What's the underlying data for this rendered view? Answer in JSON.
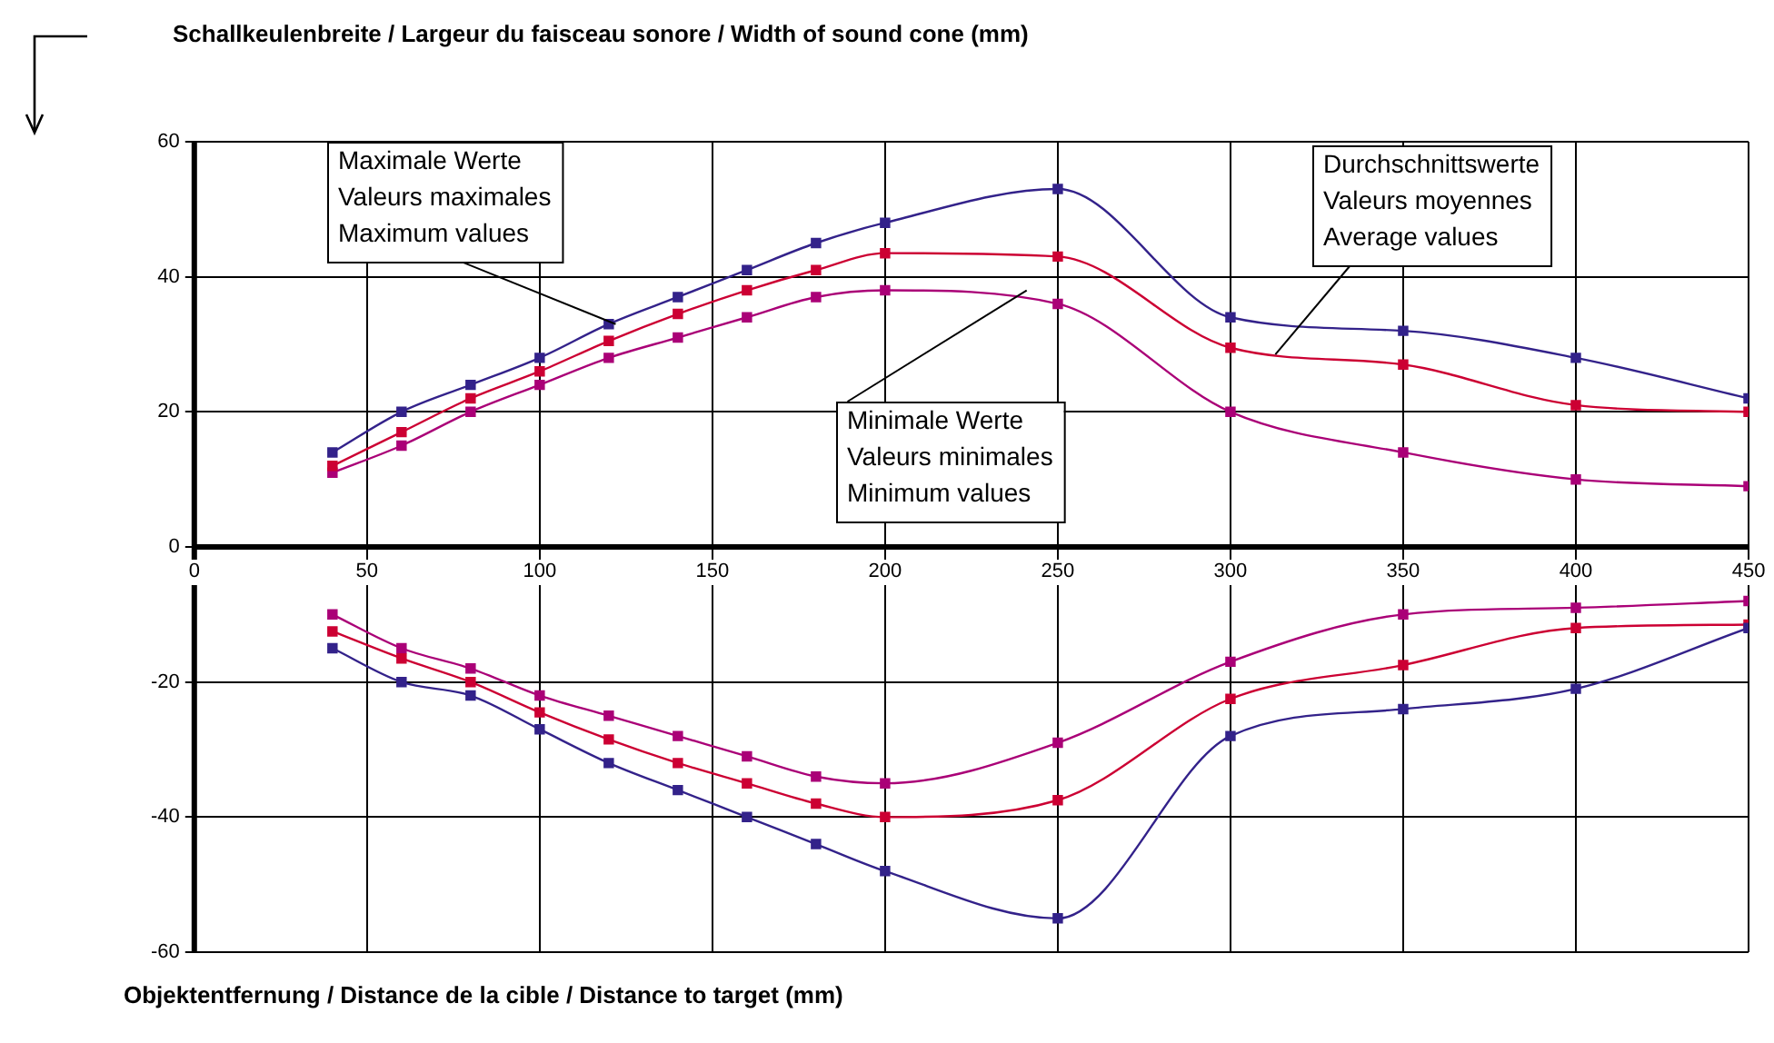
{
  "chart_data": {
    "type": "line",
    "ylabel": "Schallkeulenbreite / Largeur du faisceau sonore / Width of sound cone (mm)",
    "xlabel": "Objektentfernung / Distance de la cible / Distance to target (mm)",
    "x": [
      40,
      60,
      80,
      100,
      120,
      140,
      160,
      180,
      200,
      250,
      300,
      350,
      400,
      450
    ],
    "xlim": [
      0,
      450
    ],
    "xticks": [
      0,
      50,
      100,
      150,
      200,
      250,
      300,
      350,
      400,
      450
    ],
    "ylim": [
      -60,
      60
    ],
    "yticks": [
      -60,
      -40,
      -20,
      0,
      20,
      40,
      60
    ],
    "grid": true,
    "legend": false,
    "marker": "square",
    "line_style": "solid",
    "series": [
      {
        "color": "#33228a",
        "values": [
          14,
          20,
          24,
          28,
          33,
          37,
          41,
          45,
          48,
          53,
          34,
          32,
          28,
          22
        ]
      },
      {
        "color": "#cc0033",
        "values": [
          12,
          17,
          22,
          26,
          30.5,
          34.5,
          38,
          41,
          43.5,
          43,
          29.5,
          27,
          21,
          20
        ]
      },
      {
        "color": "#aa0077",
        "values": [
          11,
          15,
          20,
          24,
          28,
          31,
          34,
          37,
          38,
          36,
          20,
          14,
          10,
          9
        ]
      },
      {
        "color": "#33228a",
        "values": [
          -15,
          -20,
          -22,
          -27,
          -32,
          -36,
          -40,
          -44,
          -48,
          -55,
          -28,
          -24,
          -21,
          -12
        ]
      },
      {
        "color": "#cc0033",
        "values": [
          -12.5,
          -16.5,
          -20,
          -24.5,
          -28.5,
          -32,
          -35,
          -38,
          -40,
          -37.5,
          -22.5,
          -17.5,
          -12,
          -11.5
        ]
      },
      {
        "color": "#aa0077",
        "values": [
          -10,
          -15,
          -18,
          -22,
          -25,
          -28,
          -31,
          -34,
          -35,
          -29,
          -17,
          -10,
          -9,
          -8
        ]
      }
    ],
    "annotations": [
      {
        "text": "Maximale Werte\nValeurs maximales\nMaximum values",
        "x": 122,
        "y": 33
      },
      {
        "text": "Durchschnittswerte\nValeurs moyennes\nAverage values",
        "x": 313,
        "y": 28.5
      },
      {
        "text": "Minimale Werte\nValeurs minimales\nMinimum values",
        "x": 241,
        "y": 38
      }
    ]
  }
}
